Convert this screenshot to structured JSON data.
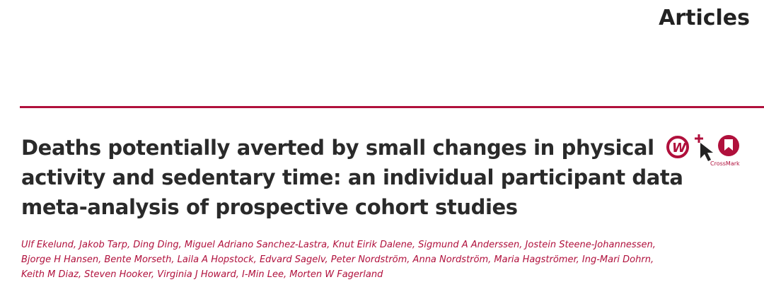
{
  "header": {
    "section": "Articles"
  },
  "article": {
    "title_lines": [
      "Deaths potentially averted by small changes in physical",
      "activity and sedentary time: an individual participant data",
      "meta-analysis of prospective cohort studies"
    ],
    "author_lines": [
      "Ulf Ekelund, Jakob Tarp, Ding Ding, Miguel Adriano Sanchez-Lastra, Knut Eirik Dalene, Sigmund A Anderssen, Jostein Steene-Johannessen,",
      "Bjorge H Hansen, Bente Morseth, Laila A Hopstock, Edvard Sagelv, Peter Nordström, Anna Nordström, Maria Hagströmer, Ing-Mari Dohrn,",
      "Keith M Diaz, Steven Hooker, Virginia J Howard, I-Min Lee, Morten W Fagerland"
    ],
    "badge": "CrossMark"
  }
}
